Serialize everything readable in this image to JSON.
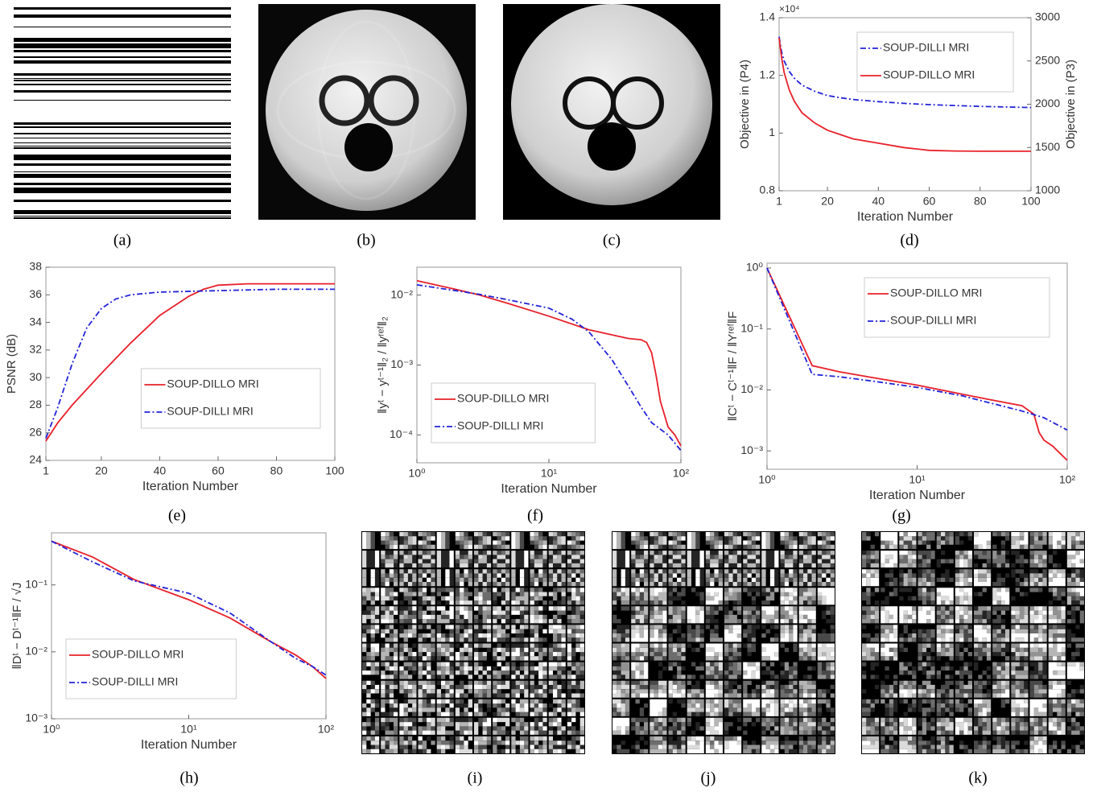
{
  "captions": [
    "(a)",
    "(b)",
    "(c)",
    "(d)",
    "(e)",
    "(f)",
    "(g)",
    "(h)",
    "(i)",
    "(j)",
    "(k)"
  ],
  "chart_data": [
    {
      "type": "line",
      "xlabel": "Iteration Number",
      "ylabel": "Objective in (P4)",
      "y2label": "Objective in (P3)",
      "y_exponent_label": "×10⁴",
      "xlim": [
        1,
        100
      ],
      "xticks": [
        1,
        20,
        40,
        60,
        80,
        100
      ],
      "ylim": [
        0.8,
        1.4
      ],
      "yticks": [
        0.8,
        1,
        1.2,
        1.4
      ],
      "y2lim": [
        1000,
        3000
      ],
      "y2ticks": [
        1000,
        1500,
        2000,
        2500,
        3000
      ],
      "legend": "upper right",
      "series": [
        {
          "name": "SOUP-DILLI MRI",
          "color": "#2323d8",
          "linestyle": "dashdot",
          "axis": "y2",
          "x": [
            1,
            2,
            3,
            5,
            7,
            10,
            15,
            20,
            25,
            30,
            40,
            50,
            60,
            70,
            80,
            90,
            100
          ],
          "values": [
            2780,
            2600,
            2500,
            2380,
            2300,
            2220,
            2150,
            2100,
            2075,
            2055,
            2030,
            2010,
            1995,
            1985,
            1975,
            1968,
            1962
          ]
        },
        {
          "name": "SOUP-DILLO MRI",
          "color": "#e8202a",
          "linestyle": "solid",
          "x": [
            1,
            2,
            3,
            5,
            7,
            10,
            15,
            20,
            25,
            30,
            40,
            50,
            60,
            70,
            80,
            90,
            100
          ],
          "values": [
            1.33,
            1.26,
            1.21,
            1.15,
            1.11,
            1.07,
            1.035,
            1.01,
            0.995,
            0.98,
            0.965,
            0.95,
            0.94,
            0.938,
            0.937,
            0.937,
            0.937
          ]
        }
      ]
    },
    {
      "type": "line",
      "xlabel": "Iteration Number",
      "ylabel": "PSNR (dB)",
      "xlim": [
        1,
        100
      ],
      "xticks": [
        1,
        20,
        40,
        60,
        80,
        100
      ],
      "ylim": [
        24,
        38
      ],
      "yticks": [
        24,
        26,
        28,
        30,
        32,
        34,
        36,
        38
      ],
      "legend": "lower right",
      "series": [
        {
          "name": "SOUP-DILLO MRI",
          "color": "#e8202a",
          "linestyle": "solid",
          "x": [
            1,
            5,
            10,
            20,
            30,
            40,
            50,
            55,
            60,
            70,
            80,
            100
          ],
          "values": [
            25.4,
            26.7,
            28.0,
            30.3,
            32.5,
            34.5,
            35.9,
            36.4,
            36.7,
            36.8,
            36.8,
            36.8
          ]
        },
        {
          "name": "SOUP-DILLI MRI",
          "color": "#2323d8",
          "linestyle": "dashdot",
          "x": [
            1,
            5,
            10,
            15,
            20,
            25,
            30,
            40,
            60,
            80,
            100
          ],
          "values": [
            25.6,
            27.8,
            31.0,
            33.6,
            35.0,
            35.7,
            36.0,
            36.2,
            36.3,
            36.4,
            36.4
          ]
        }
      ]
    },
    {
      "type": "line",
      "xscale": "log",
      "yscale": "log",
      "xlabel": "Iteration Number",
      "ylabel": "‖yᵗ − yᵗ⁻¹‖₂ / ‖yʳᵉᶠ‖₂",
      "xlim": [
        1,
        100
      ],
      "xticks": [
        {
          "value": 1,
          "label": "10⁰"
        },
        {
          "value": 10,
          "label": "10¹"
        },
        {
          "value": 100,
          "label": "10²"
        }
      ],
      "ylim": [
        4e-05,
        0.025
      ],
      "yticks": [
        {
          "value": 0.0001,
          "label": "10⁻⁴"
        },
        {
          "value": 0.001,
          "label": "10⁻³"
        },
        {
          "value": 0.01,
          "label": "10⁻²"
        }
      ],
      "legend": "lower left",
      "series": [
        {
          "name": "SOUP-DILLO MRI",
          "color": "#e8202a",
          "linestyle": "solid",
          "x": [
            1,
            2,
            3,
            5,
            10,
            20,
            30,
            40,
            50,
            55,
            60,
            65,
            70,
            80,
            90,
            100
          ],
          "values": [
            0.016,
            0.012,
            0.01,
            0.0075,
            0.005,
            0.0032,
            0.0027,
            0.0024,
            0.0023,
            0.0021,
            0.0015,
            0.0007,
            0.0003,
            0.00013,
            0.0001,
            7e-05
          ]
        },
        {
          "name": "SOUP-DILLI MRI",
          "color": "#2323d8",
          "linestyle": "dashdot",
          "x": [
            1,
            2,
            3,
            5,
            10,
            15,
            20,
            30,
            40,
            50,
            60,
            80,
            100
          ],
          "values": [
            0.014,
            0.0115,
            0.0102,
            0.0085,
            0.0065,
            0.0045,
            0.003,
            0.0012,
            0.0005,
            0.00025,
            0.00015,
            0.0001,
            6e-05
          ]
        }
      ]
    },
    {
      "type": "line",
      "xscale": "log",
      "yscale": "log",
      "xlabel": "Iteration Number",
      "ylabel": "‖Cᵗ − Cᵗ⁻¹‖F / ‖Yʳᵉᶠ‖F",
      "xlim": [
        1,
        100
      ],
      "xticks": [
        {
          "value": 1,
          "label": "10⁰"
        },
        {
          "value": 10,
          "label": "10¹"
        },
        {
          "value": 100,
          "label": "10²"
        }
      ],
      "ylim": [
        0.0005,
        1.2
      ],
      "yticks": [
        {
          "value": 0.001,
          "label": "10⁻³"
        },
        {
          "value": 0.01,
          "label": "10⁻²"
        },
        {
          "value": 0.1,
          "label": "10⁻¹"
        },
        {
          "value": 1,
          "label": "10⁰"
        }
      ],
      "legend": "upper right",
      "series": [
        {
          "name": "SOUP-DILLO MRI",
          "color": "#e8202a",
          "linestyle": "solid",
          "x": [
            1,
            2,
            3,
            5,
            10,
            20,
            30,
            50,
            60,
            65,
            70,
            80,
            90,
            100
          ],
          "values": [
            1,
            0.025,
            0.02,
            0.016,
            0.012,
            0.0085,
            0.007,
            0.0055,
            0.004,
            0.002,
            0.0015,
            0.0012,
            0.0009,
            0.0007
          ]
        },
        {
          "name": "SOUP-DILLI MRI",
          "color": "#2323d8",
          "linestyle": "dashdot",
          "x": [
            1,
            2,
            3,
            5,
            10,
            20,
            30,
            50,
            70,
            100
          ],
          "values": [
            1,
            0.018,
            0.0165,
            0.014,
            0.011,
            0.008,
            0.0062,
            0.0045,
            0.0035,
            0.0022
          ]
        }
      ]
    },
    {
      "type": "line",
      "xscale": "log",
      "yscale": "log",
      "xlabel": "Iteration Number",
      "ylabel": "‖Dᵗ − Dᵗ⁻¹‖F / √J",
      "xlim": [
        1,
        100
      ],
      "xticks": [
        {
          "value": 1,
          "label": "10⁰"
        },
        {
          "value": 10,
          "label": "10¹"
        },
        {
          "value": 100,
          "label": "10²"
        }
      ],
      "ylim": [
        0.001,
        0.6
      ],
      "yticks": [
        {
          "value": 0.001,
          "label": "10⁻³"
        },
        {
          "value": 0.01,
          "label": "10⁻²"
        },
        {
          "value": 0.1,
          "label": "10⁻¹"
        }
      ],
      "legend": "lower left",
      "series": [
        {
          "name": "SOUP-DILLO MRI",
          "color": "#e8202a",
          "linestyle": "solid",
          "x": [
            1,
            2,
            4,
            10,
            20,
            40,
            60,
            80,
            100
          ],
          "values": [
            0.45,
            0.26,
            0.12,
            0.06,
            0.032,
            0.014,
            0.009,
            0.006,
            0.004
          ]
        },
        {
          "name": "SOUP-DILLI MRI",
          "color": "#2323d8",
          "linestyle": "dashdot",
          "x": [
            1,
            2,
            4,
            10,
            20,
            40,
            60,
            80,
            100
          ],
          "values": [
            0.45,
            0.22,
            0.115,
            0.075,
            0.038,
            0.014,
            0.008,
            0.006,
            0.0045
          ]
        }
      ]
    }
  ]
}
